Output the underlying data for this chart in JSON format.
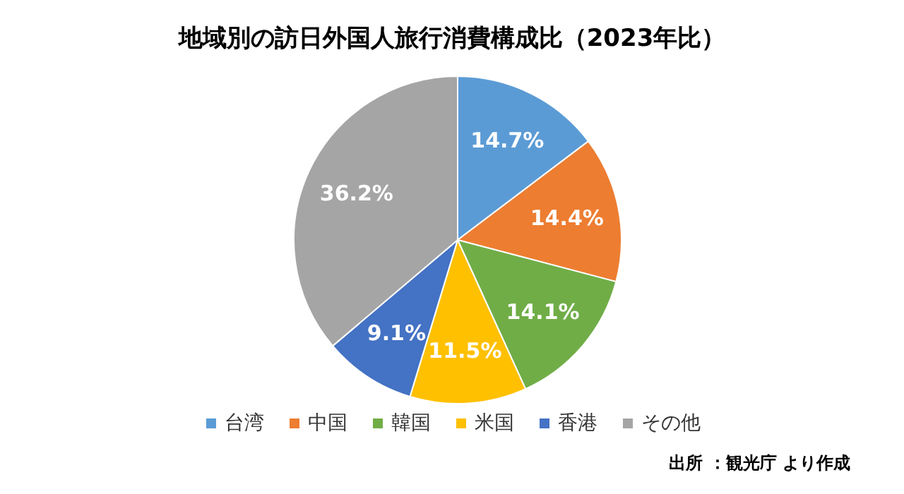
{
  "chart_data": {
    "type": "pie",
    "title": "地域別の訪日外国人旅行消費構成比（2023年比）",
    "categories": [
      "台湾",
      "中国",
      "韓国",
      "米国",
      "香港",
      "その他"
    ],
    "values": [
      14.7,
      14.4,
      14.1,
      11.5,
      9.1,
      36.2
    ],
    "value_labels": [
      "14.7%",
      "14.4%",
      "14.1%",
      "11.5%",
      "9.1%",
      "36.2%"
    ],
    "colors": [
      "#5b9bd5",
      "#ed7d31",
      "#70ad47",
      "#ffc000",
      "#4472c4",
      "#a5a5a5"
    ],
    "legend": "bottom",
    "annotations": [
      "出所 ：観光庁 より作成"
    ]
  }
}
